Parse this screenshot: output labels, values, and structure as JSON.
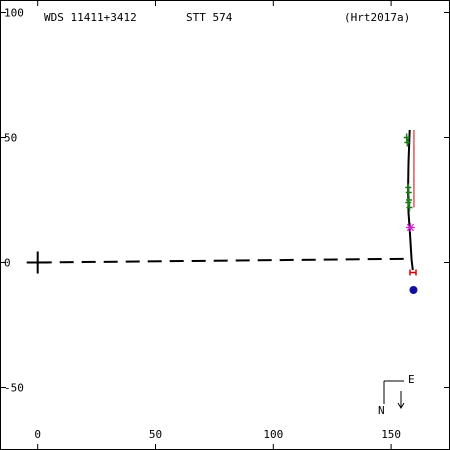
{
  "header": {
    "left": "WDS 11411+3412",
    "center": "STT 574",
    "right": "(Hrt2017a)"
  },
  "compass": {
    "north": "N",
    "east": "E"
  },
  "chart_data": {
    "type": "scatter",
    "xlim": [
      -16,
      175
    ],
    "ylim": [
      -75,
      105
    ],
    "x_ticks": [
      0,
      50,
      100,
      150
    ],
    "y_ticks": [
      100,
      50,
      0,
      -50
    ],
    "x_tick_labels": [
      "0",
      "50",
      "100",
      "150"
    ],
    "y_tick_labels": [
      "100",
      "50",
      "0",
      "-50"
    ],
    "primary_position": [
      0,
      0
    ],
    "node_line": [
      [
        0,
        0
      ],
      [
        158.5,
        1.5
      ]
    ],
    "orbit_arc": [
      [
        157.9,
        53
      ],
      [
        157.4,
        40
      ],
      [
        157.2,
        30
      ],
      [
        157.4,
        20
      ],
      [
        158.0,
        12
      ],
      [
        158.7,
        1
      ],
      [
        159.2,
        -3
      ]
    ],
    "observations": {
      "green_plus": [
        [
          156.6,
          50
        ],
        [
          156.9,
          48
        ],
        [
          157.3,
          30
        ],
        [
          157.5,
          28
        ],
        [
          157.6,
          25
        ],
        [
          157.3,
          24
        ],
        [
          157.8,
          22
        ]
      ],
      "red_lines": [
        [
          [
            159.7,
            53
          ],
          [
            159.7,
            22
          ]
        ]
      ],
      "magenta_star": [
        [
          158.2,
          14
        ]
      ],
      "red_h": [
        [
          159.3,
          -4
        ]
      ],
      "blue_dot": [
        [
          159.5,
          -11
        ]
      ]
    },
    "colors": {
      "axes": "#000000",
      "orbit": "#000000",
      "green": "#1a7a1a",
      "red": "#dd0000",
      "magenta": "#cc22cc",
      "blue": "#1010a0"
    }
  }
}
